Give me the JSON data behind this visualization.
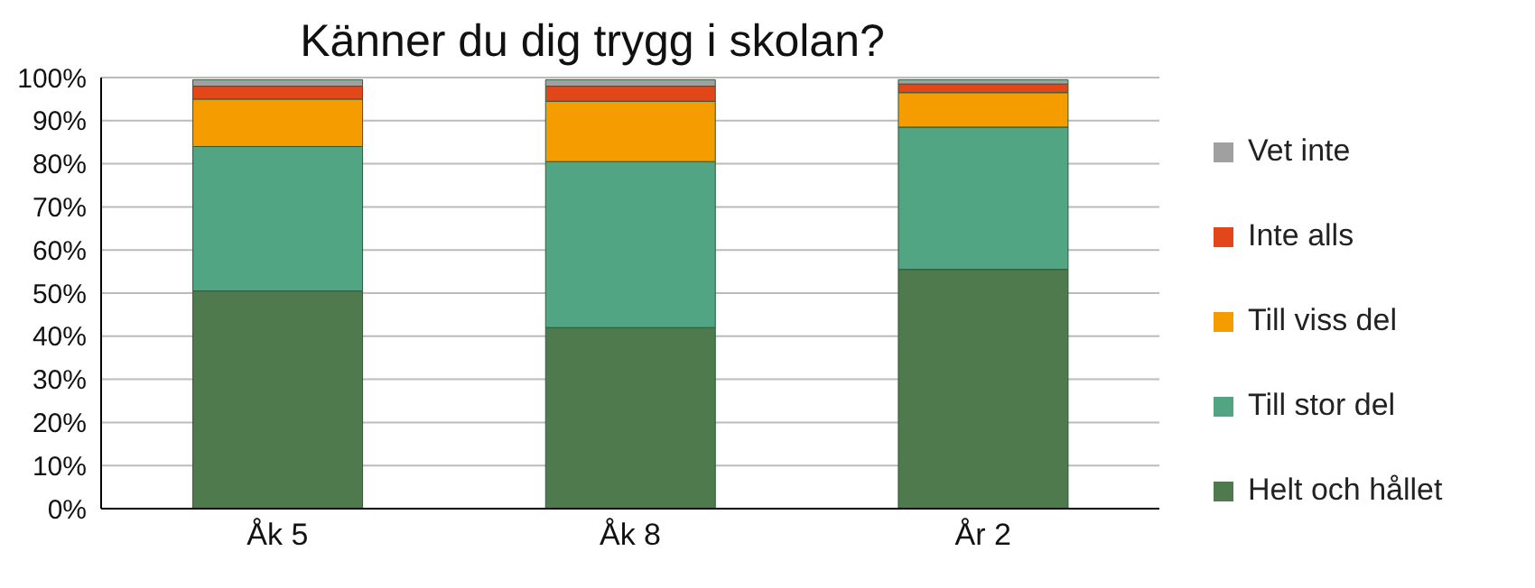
{
  "chart_data": {
    "type": "bar",
    "title": "Känner du dig trygg i skolan?",
    "categories": [
      "Åk 5",
      "Åk 8",
      "År 2"
    ],
    "stacked": true,
    "series": [
      {
        "name": "Helt och hållet",
        "color": "#4e7a4e",
        "values": [
          50.5,
          42,
          55.5
        ]
      },
      {
        "name": "Till stor del",
        "color": "#52a583",
        "values": [
          33.5,
          38.5,
          33
        ]
      },
      {
        "name": "Till viss del",
        "color": "#f59c00",
        "values": [
          11,
          14,
          8
        ]
      },
      {
        "name": "Inte alls",
        "color": "#e2471a",
        "values": [
          3,
          3.5,
          2
        ]
      },
      {
        "name": "Vet inte",
        "color": "#a0a0a0",
        "values": [
          1.5,
          1.5,
          1
        ]
      }
    ],
    "ylim": [
      0,
      100
    ],
    "yticks": [
      {
        "value": 0,
        "label": "0%"
      },
      {
        "value": 10,
        "label": "10%"
      },
      {
        "value": 20,
        "label": "20%"
      },
      {
        "value": 30,
        "label": "30%"
      },
      {
        "value": 40,
        "label": "40%"
      },
      {
        "value": 50,
        "label": "50%"
      },
      {
        "value": 60,
        "label": "60%"
      },
      {
        "value": 70,
        "label": "70%"
      },
      {
        "value": 80,
        "label": "80%"
      },
      {
        "value": 90,
        "label": "90%"
      },
      {
        "value": 100,
        "label": "100%"
      }
    ],
    "grid": "y",
    "legend": "right"
  }
}
